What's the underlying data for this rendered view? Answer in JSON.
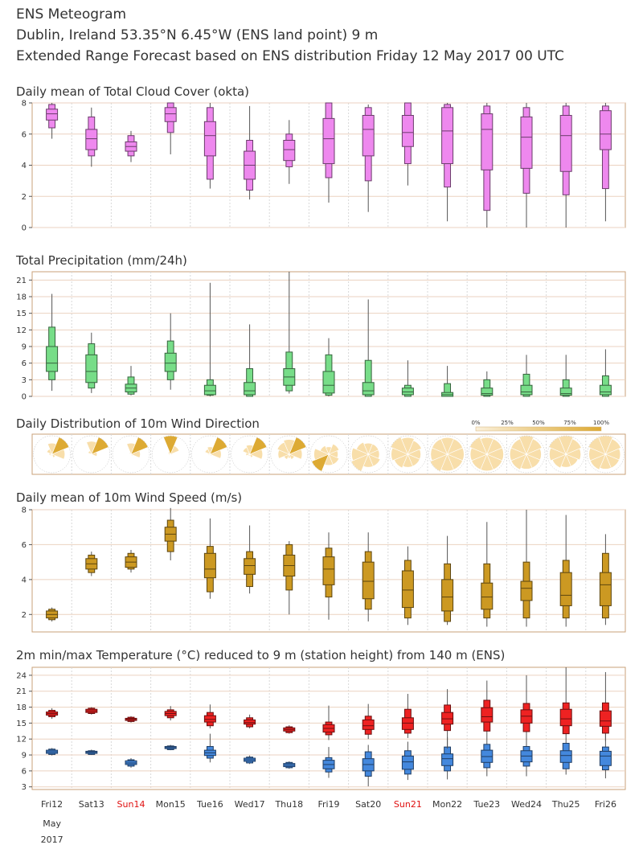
{
  "header": {
    "title": "ENS Meteogram",
    "location": "Dublin, Ireland 53.35°N 6.45°W (ENS land point) 9 m",
    "subtitle": "Extended Range Forecast based on ENS distribution Friday 12 May 2017 00 UTC"
  },
  "days": [
    {
      "label": "Fri12",
      "sunday": false
    },
    {
      "label": "Sat13",
      "sunday": false
    },
    {
      "label": "Sun14",
      "sunday": true
    },
    {
      "label": "Mon15",
      "sunday": false
    },
    {
      "label": "Tue16",
      "sunday": false
    },
    {
      "label": "Wed17",
      "sunday": false
    },
    {
      "label": "Thu18",
      "sunday": false
    },
    {
      "label": "Fri19",
      "sunday": false
    },
    {
      "label": "Sat20",
      "sunday": false
    },
    {
      "label": "Sun21",
      "sunday": true
    },
    {
      "label": "Mon22",
      "sunday": false
    },
    {
      "label": "Tue23",
      "sunday": false
    },
    {
      "label": "Wed24",
      "sunday": false
    },
    {
      "label": "Thu25",
      "sunday": false
    },
    {
      "label": "Fri26",
      "sunday": false
    }
  ],
  "date_sub": [
    "May",
    "2017"
  ],
  "chart_data": [
    {
      "type": "box",
      "title": "Daily mean of Total Cloud Cover (okta)",
      "ylim": [
        0,
        8
      ],
      "yticks": [
        0,
        2,
        4,
        6,
        8
      ],
      "color": "#ee88ee",
      "stats_order": [
        "min",
        "p10",
        "p25",
        "median",
        "p75",
        "p90",
        "max"
      ],
      "values": [
        [
          5.7,
          6.4,
          6.9,
          7.3,
          7.6,
          7.9,
          8.0
        ],
        [
          3.9,
          4.6,
          5.0,
          5.7,
          6.3,
          7.1,
          7.7
        ],
        [
          4.2,
          4.6,
          4.9,
          5.2,
          5.5,
          5.9,
          6.2
        ],
        [
          4.7,
          6.1,
          6.8,
          7.3,
          7.7,
          8.0,
          8.0
        ],
        [
          2.5,
          3.1,
          4.6,
          5.9,
          6.8,
          7.7,
          8.0
        ],
        [
          1.8,
          2.4,
          3.1,
          4.0,
          4.9,
          5.6,
          7.8
        ],
        [
          2.8,
          3.9,
          4.3,
          5.0,
          5.6,
          6.0,
          6.9
        ],
        [
          1.6,
          3.2,
          4.1,
          5.7,
          7.0,
          8.0,
          8.0
        ],
        [
          1.0,
          3.0,
          4.6,
          6.3,
          7.2,
          7.7,
          7.9
        ],
        [
          2.7,
          4.1,
          5.2,
          6.1,
          7.2,
          8.0,
          8.0
        ],
        [
          0.4,
          2.6,
          4.1,
          6.2,
          7.7,
          7.9,
          8.0
        ],
        [
          0.0,
          1.1,
          3.7,
          6.3,
          7.3,
          7.8,
          8.0
        ],
        [
          0.0,
          2.2,
          3.8,
          5.8,
          7.1,
          7.7,
          8.0
        ],
        [
          0.0,
          2.1,
          3.6,
          5.9,
          7.2,
          7.8,
          8.0
        ],
        [
          0.4,
          2.5,
          5.0,
          6.0,
          7.5,
          7.8,
          8.0
        ]
      ]
    },
    {
      "type": "box",
      "title": "Total Precipitation (mm/24h)",
      "ylim": [
        0,
        22.5
      ],
      "yticks": [
        0,
        3,
        6,
        9,
        12,
        15,
        18,
        21
      ],
      "color": "#77dd88",
      "stats_order": [
        "min",
        "p10",
        "p25",
        "median",
        "p75",
        "p90",
        "max"
      ],
      "values": [
        [
          1.0,
          3.0,
          4.5,
          6.0,
          9.0,
          12.5,
          18.5
        ],
        [
          0.6,
          1.5,
          2.5,
          4.5,
          7.5,
          9.5,
          11.5
        ],
        [
          0.2,
          0.4,
          0.8,
          1.5,
          2.2,
          3.5,
          5.5
        ],
        [
          1.2,
          3.0,
          4.5,
          6.0,
          7.8,
          10.0,
          15.0
        ],
        [
          0.0,
          0.2,
          0.3,
          1.0,
          2.0,
          3.0,
          20.5
        ],
        [
          0.0,
          0.0,
          0.3,
          1.0,
          2.5,
          5.0,
          13.0
        ],
        [
          0.5,
          1.0,
          2.0,
          3.5,
          5.0,
          8.0,
          22.5
        ],
        [
          0.0,
          0.2,
          0.6,
          2.0,
          4.5,
          7.5,
          10.5
        ],
        [
          0.0,
          0.0,
          0.3,
          1.0,
          2.5,
          6.5,
          17.5
        ],
        [
          0.0,
          0.0,
          0.3,
          0.8,
          1.5,
          2.0,
          6.5
        ],
        [
          0.0,
          0.0,
          0.0,
          0.3,
          0.7,
          2.3,
          5.5
        ],
        [
          0.0,
          0.0,
          0.2,
          0.5,
          1.5,
          3.0,
          4.5
        ],
        [
          0.0,
          0.0,
          0.3,
          0.8,
          2.0,
          4.0,
          7.5
        ],
        [
          0.0,
          0.0,
          0.2,
          0.5,
          1.5,
          3.0,
          7.5
        ],
        [
          0.0,
          0.0,
          0.3,
          0.8,
          2.0,
          3.7,
          8.5
        ]
      ]
    },
    {
      "type": "wind_rose",
      "title": "Daily Distribution of 10m Wind Direction",
      "legend_labels": [
        "0%",
        "25%",
        "50%",
        "75%",
        "100%"
      ],
      "color": "#ddaa33",
      "light_color": "#f8deaa",
      "direction_bins_deg": [
        0,
        45,
        90,
        135,
        180,
        225,
        270,
        315
      ],
      "percent_by_direction": [
        [
          5,
          10,
          15,
          30,
          60,
          100,
          70,
          20
        ],
        [
          0,
          0,
          0,
          20,
          70,
          100,
          30,
          0
        ],
        [
          0,
          0,
          0,
          10,
          60,
          100,
          50,
          10
        ],
        [
          5,
          5,
          10,
          15,
          100,
          50,
          10,
          5
        ],
        [
          0,
          0,
          10,
          30,
          40,
          100,
          60,
          10
        ],
        [
          10,
          10,
          20,
          40,
          50,
          100,
          70,
          20
        ],
        [
          20,
          30,
          60,
          70,
          80,
          100,
          70,
          30
        ],
        [
          60,
          100,
          80,
          50,
          40,
          60,
          50,
          60
        ],
        [
          70,
          100,
          90,
          70,
          60,
          60,
          60,
          70
        ],
        [
          70,
          80,
          90,
          100,
          90,
          80,
          70,
          70
        ],
        [
          90,
          100,
          90,
          90,
          90,
          90,
          90,
          90
        ],
        [
          90,
          90,
          90,
          100,
          90,
          90,
          90,
          90
        ],
        [
          80,
          90,
          90,
          90,
          100,
          90,
          80,
          80
        ],
        [
          70,
          80,
          90,
          100,
          100,
          90,
          80,
          70
        ],
        [
          80,
          90,
          90,
          100,
          100,
          90,
          80,
          80
        ]
      ]
    },
    {
      "type": "box",
      "title": "Daily mean of 10m Wind Speed (m/s)",
      "ylim": [
        1,
        8
      ],
      "yticks": [
        2,
        4,
        6,
        8
      ],
      "color": "#cc9922",
      "stats_order": [
        "min",
        "p10",
        "p25",
        "median",
        "p75",
        "p90",
        "max"
      ],
      "values": [
        [
          1.6,
          1.7,
          1.8,
          2.0,
          2.2,
          2.3,
          2.4
        ],
        [
          4.2,
          4.4,
          4.6,
          4.9,
          5.2,
          5.4,
          5.6
        ],
        [
          4.4,
          4.6,
          4.7,
          5.0,
          5.3,
          5.5,
          5.7
        ],
        [
          5.1,
          5.6,
          6.2,
          6.6,
          7.0,
          7.4,
          8.1
        ],
        [
          2.9,
          3.3,
          4.1,
          4.6,
          5.5,
          5.9,
          7.5
        ],
        [
          3.2,
          3.6,
          4.3,
          4.8,
          5.2,
          5.6,
          7.1
        ],
        [
          2.0,
          3.4,
          4.2,
          4.8,
          5.4,
          6.0,
          6.2
        ],
        [
          1.7,
          3.0,
          3.7,
          4.6,
          5.3,
          5.8,
          6.7
        ],
        [
          1.6,
          2.3,
          2.9,
          3.9,
          5.0,
          5.6,
          6.7
        ],
        [
          1.4,
          1.8,
          2.4,
          3.4,
          4.5,
          5.1,
          5.9
        ],
        [
          1.4,
          1.6,
          2.2,
          3.0,
          4.0,
          4.9,
          6.5
        ],
        [
          1.3,
          1.8,
          2.3,
          3.0,
          3.8,
          4.9,
          7.3
        ],
        [
          1.3,
          1.8,
          2.8,
          3.5,
          3.9,
          5.0,
          8.0
        ],
        [
          1.3,
          1.8,
          2.5,
          3.1,
          4.4,
          5.1,
          7.7
        ],
        [
          1.4,
          1.8,
          2.5,
          3.7,
          4.4,
          5.5,
          6.6
        ]
      ]
    },
    {
      "type": "box_minmax",
      "title": "2m min/max Temperature (°C) reduced to 9 m (station height) from 140 m (ENS)",
      "ylim": [
        2.5,
        25.5
      ],
      "yticks": [
        3,
        6,
        9,
        12,
        15,
        18,
        21,
        24
      ],
      "max_color": "#ee2222",
      "min_color": "#4488dd",
      "stats_order": [
        "min",
        "p10",
        "p25",
        "median",
        "p75",
        "p90",
        "max"
      ],
      "tmax": [
        [
          15.8,
          16.2,
          16.5,
          16.8,
          17.1,
          17.4,
          17.8
        ],
        [
          16.6,
          16.8,
          17.0,
          17.3,
          17.6,
          17.8,
          18.0
        ],
        [
          15.1,
          15.3,
          15.5,
          15.7,
          15.9,
          16.1,
          16.3
        ],
        [
          15.5,
          16.0,
          16.4,
          16.8,
          17.2,
          17.5,
          18.2
        ],
        [
          14.0,
          14.5,
          15.2,
          15.7,
          16.4,
          17.0,
          18.5
        ],
        [
          14.0,
          14.3,
          14.8,
          15.1,
          15.6,
          16.0,
          16.6
        ],
        [
          13.0,
          13.2,
          13.5,
          13.8,
          14.1,
          14.3,
          14.6
        ],
        [
          11.8,
          12.8,
          13.3,
          14.0,
          14.7,
          15.2,
          18.3
        ],
        [
          12.0,
          12.9,
          13.8,
          14.5,
          15.6,
          16.3,
          18.6
        ],
        [
          12.2,
          13.1,
          13.8,
          15.0,
          16.0,
          17.6,
          20.5
        ],
        [
          10.2,
          13.6,
          14.8,
          15.8,
          17.0,
          18.4,
          21.4
        ],
        [
          11.8,
          13.5,
          15.2,
          16.2,
          17.9,
          19.3,
          23.0
        ],
        [
          11.0,
          13.4,
          15.0,
          16.3,
          17.5,
          18.7,
          24.0
        ],
        [
          12.4,
          13.0,
          14.5,
          15.8,
          17.6,
          18.8,
          25.5
        ],
        [
          11.6,
          13.1,
          14.4,
          15.4,
          17.3,
          18.8,
          24.6
        ]
      ],
      "tmin": [
        [
          8.9,
          9.1,
          9.3,
          9.6,
          9.9,
          10.1,
          10.3
        ],
        [
          9.0,
          9.1,
          9.3,
          9.5,
          9.7,
          9.8,
          10.0
        ],
        [
          6.6,
          6.9,
          7.2,
          7.5,
          7.9,
          8.1,
          8.4
        ],
        [
          9.9,
          10.0,
          10.2,
          10.4,
          10.6,
          10.7,
          10.9
        ],
        [
          7.6,
          8.4,
          8.9,
          9.4,
          9.9,
          10.6,
          13.0
        ],
        [
          7.3,
          7.5,
          7.8,
          8.1,
          8.4,
          8.6,
          8.9
        ],
        [
          6.4,
          6.6,
          6.8,
          7.1,
          7.4,
          7.6,
          7.8
        ],
        [
          4.7,
          5.8,
          6.4,
          7.2,
          8.0,
          8.5,
          10.5
        ],
        [
          3.1,
          5.0,
          6.0,
          7.2,
          8.3,
          9.6,
          10.9
        ],
        [
          4.3,
          5.4,
          6.3,
          7.7,
          8.8,
          9.8,
          11.5
        ],
        [
          4.4,
          6.0,
          7.0,
          8.3,
          9.2,
          10.5,
          12.4
        ],
        [
          5.0,
          6.6,
          7.6,
          8.7,
          9.9,
          11.0,
          11.8
        ],
        [
          5.0,
          6.9,
          7.7,
          8.8,
          9.8,
          10.6,
          12.0
        ],
        [
          5.3,
          6.4,
          7.6,
          8.9,
          9.8,
          11.2,
          12.4
        ],
        [
          4.6,
          6.2,
          7.0,
          8.8,
          9.7,
          10.5,
          13.5
        ]
      ]
    }
  ]
}
